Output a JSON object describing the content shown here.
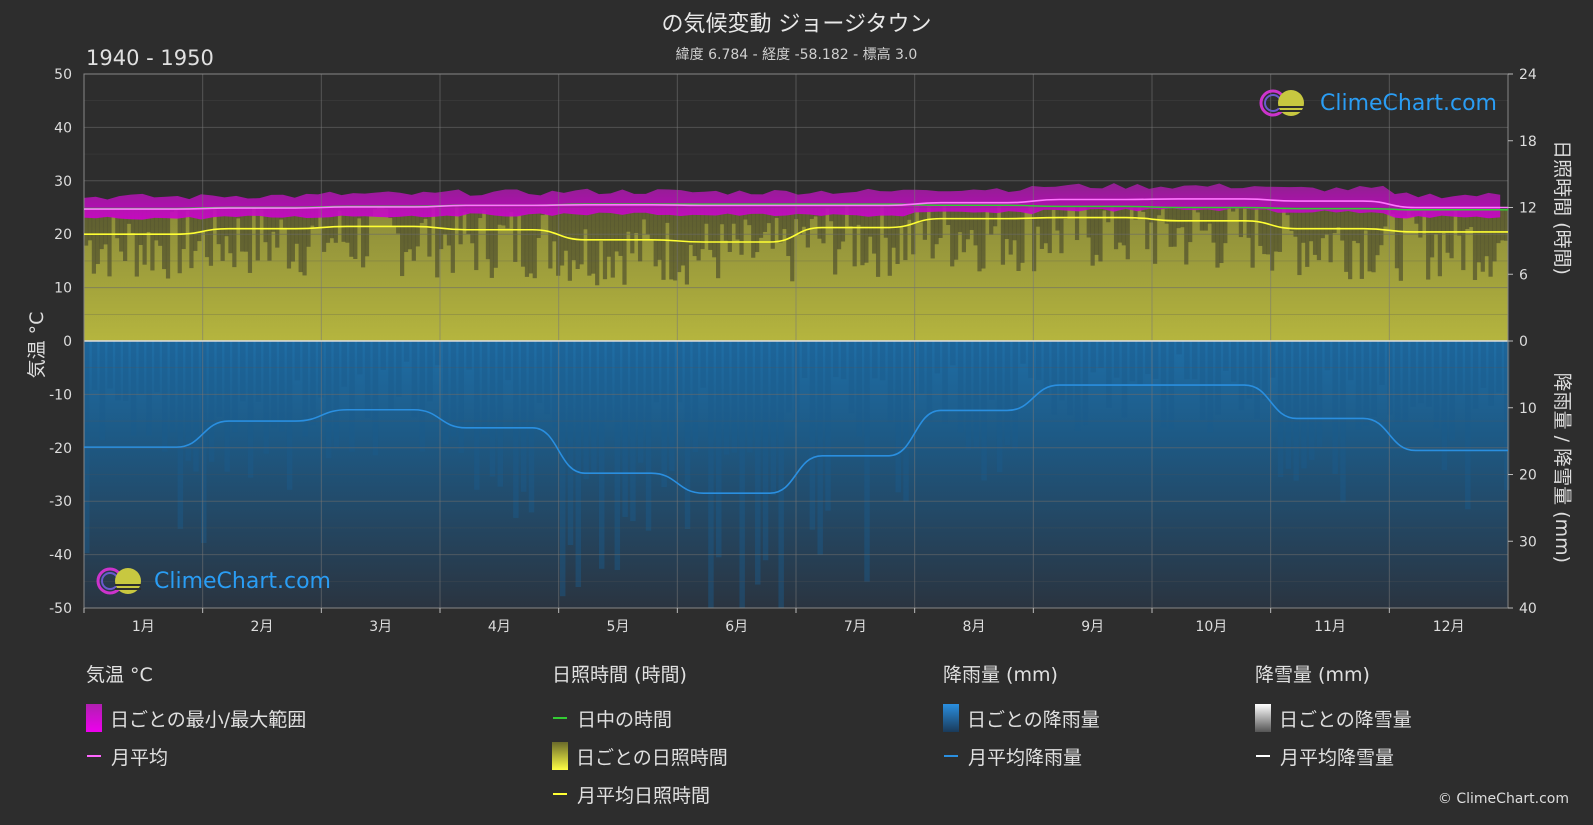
{
  "header": {
    "title": "の気候変動 ジョージタウン",
    "subtitle": "緯度 6.784 - 経度 -58.182 - 標高 3.0",
    "period": "1940 - 1950"
  },
  "logo": {
    "text": "ClimeChart.com"
  },
  "copyright": "© ClimeChart.com",
  "colors": {
    "background": "#2d2d2d",
    "temp_range": "#c000c0",
    "temp_mean": "#ff66ff",
    "daylight": "#33cc33",
    "sunshine_fill": "#a8a83a",
    "sunshine_mean": "#ffff33",
    "rain_fill": "#1e6fa8",
    "rain_mean": "#2a8fe0",
    "snow_mean": "#ffffff",
    "grid": "#5a5a5a"
  },
  "legend": {
    "temperature": {
      "heading": "気温 °C",
      "items": [
        "日ごとの最小/最大範囲",
        "月平均"
      ]
    },
    "sunshine": {
      "heading": "日照時間 (時間)",
      "items": [
        "日中の時間",
        "日ごとの日照時間",
        "月平均日照時間"
      ]
    },
    "rain": {
      "heading": "降雨量 (mm)",
      "items": [
        "日ごとの降雨量",
        "月平均降雨量"
      ]
    },
    "snow": {
      "heading": "降雪量 (mm)",
      "items": [
        "日ごとの降雪量",
        "月平均降雪量"
      ]
    }
  },
  "chart_data": {
    "type": "line",
    "title": "の気候変動 ジョージタウン",
    "categories": [
      "1月",
      "2月",
      "3月",
      "4月",
      "5月",
      "6月",
      "7月",
      "8月",
      "9月",
      "10月",
      "11月",
      "12月"
    ],
    "y_left": {
      "label": "気温 °C",
      "ticks": [
        50,
        40,
        30,
        20,
        10,
        0,
        -10,
        -20,
        -30,
        -40,
        -50
      ],
      "range": [
        -50,
        50
      ]
    },
    "y_right_top": {
      "label": "日照時間 (時間)",
      "ticks": [
        24,
        18,
        12,
        6,
        0
      ],
      "range": [
        0,
        24
      ]
    },
    "y_right_bottom": {
      "label": "降雨量 / 降雪量 (mm)",
      "ticks": [
        0,
        10,
        20,
        30,
        40
      ],
      "range": [
        0,
        40
      ]
    },
    "grid": true,
    "series": [
      {
        "name": "月平均",
        "axis": "temperature",
        "values": [
          24.7,
          24.9,
          25.1,
          25.4,
          25.5,
          25.4,
          25.4,
          25.9,
          26.5,
          26.6,
          26.2,
          25.0
        ]
      },
      {
        "name": "日ごとの最小/最大範囲",
        "axis": "temperature",
        "min": [
          23.0,
          23.2,
          23.4,
          23.6,
          23.8,
          23.6,
          23.5,
          24.0,
          24.5,
          24.6,
          24.2,
          23.2
        ],
        "max": [
          27.0,
          27.2,
          27.5,
          27.8,
          28.0,
          27.9,
          28.0,
          28.5,
          29.0,
          29.0,
          28.5,
          27.3
        ]
      },
      {
        "name": "日中の時間",
        "axis": "sunshine",
        "values": [
          11.9,
          12.0,
          12.1,
          12.2,
          12.3,
          12.3,
          12.3,
          12.2,
          12.1,
          12.0,
          11.9,
          11.8
        ]
      },
      {
        "name": "月平均日照時間",
        "axis": "sunshine",
        "values": [
          9.6,
          10.1,
          10.3,
          10.0,
          9.1,
          8.9,
          10.2,
          11.0,
          11.1,
          10.8,
          10.1,
          9.8
        ]
      },
      {
        "name": "月平均降雨量",
        "axis": "precipitation",
        "values": [
          15.9,
          12.0,
          10.3,
          13.0,
          19.8,
          22.8,
          17.2,
          10.4,
          6.6,
          6.6,
          11.6,
          16.4
        ]
      },
      {
        "name": "月平均降雪量",
        "axis": "precipitation",
        "values": [
          0,
          0,
          0,
          0,
          0,
          0,
          0,
          0,
          0,
          0,
          0,
          0
        ]
      }
    ]
  }
}
